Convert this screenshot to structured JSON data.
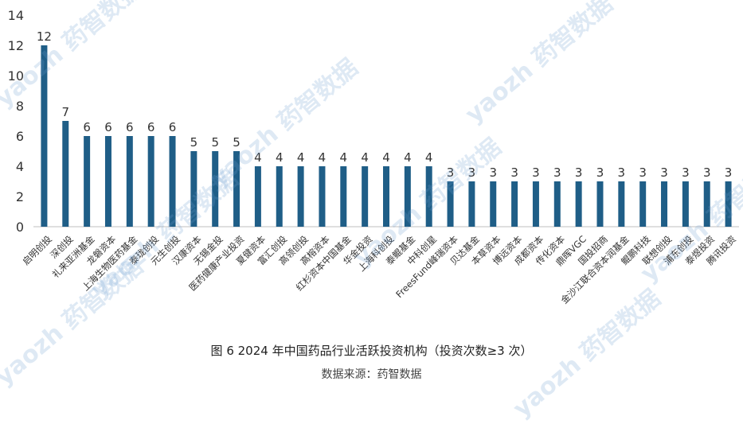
{
  "chart_data": {
    "type": "bar",
    "title": "图 6 2024 年中国药品行业活跃投资机构（投资次数≥3 次）",
    "source": "数据来源：药智数据",
    "xlabel": "",
    "ylabel": "",
    "ylim": [
      0,
      14
    ],
    "yticks": [
      0,
      2,
      4,
      6,
      8,
      10,
      12,
      14
    ],
    "grid": false,
    "legend": "none",
    "bar_color": "#1f5e87",
    "categories": [
      "启明创投",
      "深创投",
      "礼来亚洲基金",
      "龙磐资本",
      "上海生物医药基金",
      "泰珑创投",
      "元生创投",
      "汉康资本",
      "无锡金投",
      "医药健康产业投资",
      "夏健资本",
      "富汇创投",
      "高领创投",
      "高榕资本",
      "红杉资本中国基金",
      "华金投资",
      "上海科创投",
      "泰鲲基金",
      "中科创星",
      "FreesFund峰瑞资本",
      "贝达基金",
      "本草资本",
      "博远资本",
      "成都资本",
      "传化资本",
      "鼎晖VGC",
      "国投招商",
      "金沙江联合资本润基金",
      "鲲鹏科技",
      "联想创投",
      "浦东创投",
      "泰煜投资",
      "腾讯投资"
    ],
    "values": [
      12,
      7,
      6,
      6,
      6,
      6,
      6,
      5,
      5,
      5,
      4,
      4,
      4,
      4,
      4,
      4,
      4,
      4,
      4,
      3,
      3,
      3,
      3,
      3,
      3,
      3,
      3,
      3,
      3,
      3,
      3,
      3,
      3
    ]
  },
  "watermark": "yaozh 药智数据"
}
